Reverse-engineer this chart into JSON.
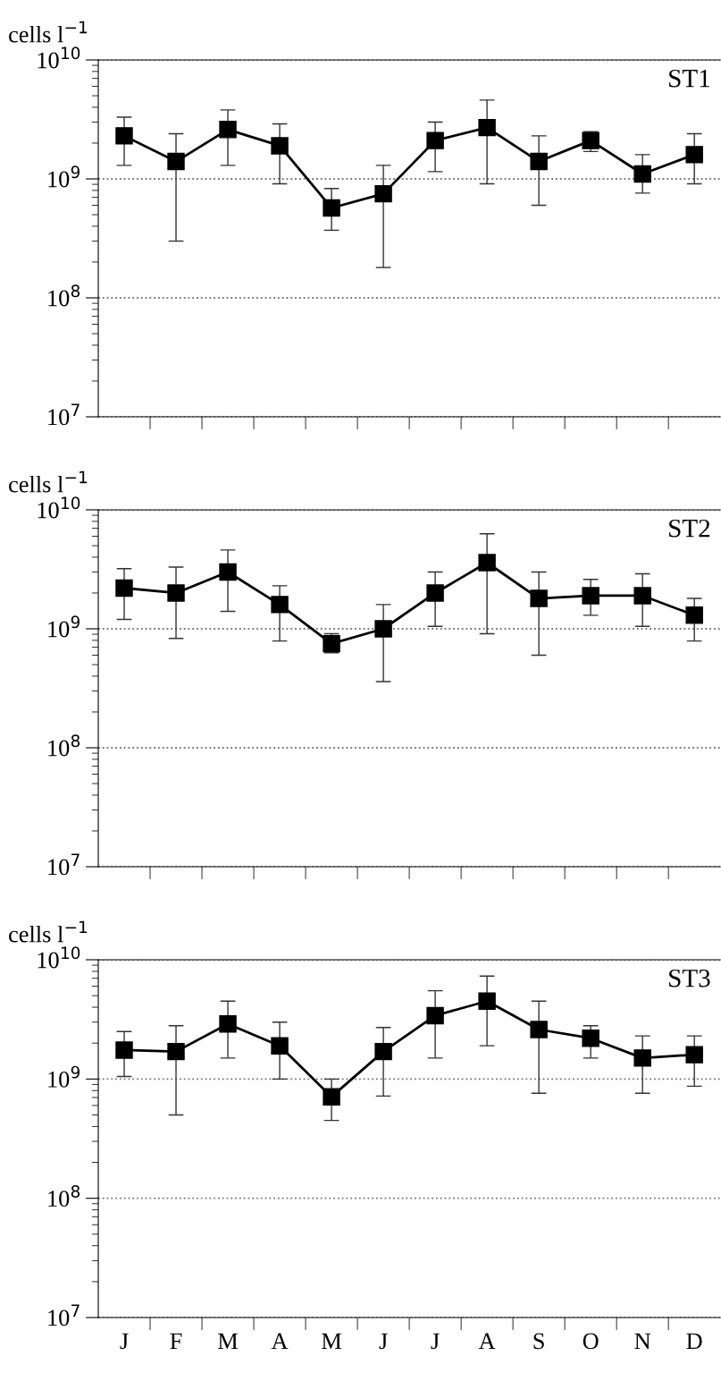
{
  "chart_data": [
    {
      "type": "line",
      "ylabel": "cells l$^{−1}$",
      "annotations": [
        "ST1"
      ],
      "categories": [
        null,
        null,
        null,
        null,
        null,
        null,
        null,
        null,
        null,
        null,
        null,
        null
      ],
      "log": "y",
      "grid": "y",
      "marker": "square",
      "line_style": "solid",
      "ylim": [
        10000000.0,
        10000000000.0
      ],
      "yticks": [
        {
          "value": 10000000.0,
          "label": "10$^{7}$"
        },
        {
          "value": 100000000.0,
          "label": "10$^{8}$"
        },
        {
          "value": 1000000000.0,
          "label": "10$^{9}$"
        },
        {
          "value": 10000000000.0,
          "label": "10$^{10}$"
        }
      ],
      "series": [
        {
          "color": "#000000",
          "values": [
            2300000000.0,
            1400000000.0,
            2600000000.0,
            1900000000.0,
            570000000.0,
            750000000.0,
            2100000000.0,
            2700000000.0,
            1400000000.0,
            2100000000.0,
            1100000000.0,
            1600000000.0
          ],
          "errors": [
            [
              1300000000.0,
              3300000000.0
            ],
            [
              300000000.0,
              2400000000.0
            ],
            [
              1300000000.0,
              3800000000.0
            ],
            [
              910000000.0,
              2900000000.0
            ],
            [
              370000000.0,
              830000000.0
            ],
            [
              180000000.0,
              1300000000.0
            ],
            [
              1150000000.0,
              3000000000.0
            ],
            [
              910000000.0,
              4600000000.0
            ],
            [
              600000000.0,
              2300000000.0
            ],
            [
              1700000000.0,
              2500000000.0
            ],
            [
              760000000.0,
              1600000000.0
            ],
            [
              910000000.0,
              2400000000.0
            ]
          ]
        }
      ]
    },
    {
      "type": "line",
      "ylabel": "cells l$^{−1}$",
      "annotations": [
        "ST2"
      ],
      "categories": [
        null,
        null,
        null,
        null,
        null,
        null,
        null,
        null,
        null,
        null,
        null,
        null
      ],
      "log": "y",
      "grid": "y",
      "marker": "square",
      "line_style": "solid",
      "ylim": [
        10000000.0,
        10000000000.0
      ],
      "yticks": [
        {
          "value": 10000000.0,
          "label": "10$^{7}$"
        },
        {
          "value": 100000000.0,
          "label": "10$^{8}$"
        },
        {
          "value": 1000000000.0,
          "label": "10$^{9}$"
        },
        {
          "value": 10000000000.0,
          "label": "10$^{10}$"
        }
      ],
      "series": [
        {
          "color": "#000000",
          "values": [
            2200000000.0,
            2000000000.0,
            3000000000.0,
            1600000000.0,
            750000000.0,
            1000000000.0,
            2000000000.0,
            3600000000.0,
            1800000000.0,
            1900000000.0,
            1900000000.0,
            1300000000.0
          ],
          "errors": [
            [
              1200000000.0,
              3200000000.0
            ],
            [
              830000000.0,
              3300000000.0
            ],
            [
              1400000000.0,
              4600000000.0
            ],
            [
              790000000.0,
              2300000000.0
            ],
            [
              630000000.0,
              910000000.0
            ],
            [
              360000000.0,
              1600000000.0
            ],
            [
              1050000000.0,
              3000000000.0
            ],
            [
              910000000.0,
              6300000000.0
            ],
            [
              600000000.0,
              3000000000.0
            ],
            [
              1300000000.0,
              2600000000.0
            ],
            [
              1050000000.0,
              2900000000.0
            ],
            [
              790000000.0,
              1800000000.0
            ]
          ]
        }
      ]
    },
    {
      "type": "line",
      "ylabel": "cells l$^{−1}$",
      "annotations": [
        "ST3"
      ],
      "categories": [
        "J",
        "F",
        "M",
        "A",
        "M",
        "J",
        "J",
        "A",
        "S",
        "O",
        "N",
        "D"
      ],
      "log": "y",
      "grid": "y",
      "marker": "square",
      "line_style": "solid",
      "ylim": [
        10000000.0,
        10000000000.0
      ],
      "yticks": [
        {
          "value": 10000000.0,
          "label": "10$^{7}$"
        },
        {
          "value": 100000000.0,
          "label": "10$^{8}$"
        },
        {
          "value": 1000000000.0,
          "label": "10$^{9}$"
        },
        {
          "value": 10000000000.0,
          "label": "10$^{10}$"
        }
      ],
      "series": [
        {
          "color": "#000000",
          "values": [
            1750000000.0,
            1700000000.0,
            2900000000.0,
            1900000000.0,
            710000000.0,
            1700000000.0,
            3400000000.0,
            4500000000.0,
            2600000000.0,
            2200000000.0,
            1500000000.0,
            1600000000.0
          ],
          "errors": [
            [
              1050000000.0,
              2500000000.0
            ],
            [
              500000000.0,
              2800000000.0
            ],
            [
              1500000000.0,
              4500000000.0
            ],
            [
              1000000000.0,
              3000000000.0
            ],
            [
              450000000.0,
              1000000000.0
            ],
            [
              720000000.0,
              2700000000.0
            ],
            [
              1500000000.0,
              5500000000.0
            ],
            [
              1900000000.0,
              7300000000.0
            ],
            [
              760000000.0,
              4500000000.0
            ],
            [
              1500000000.0,
              2800000000.0
            ],
            [
              760000000.0,
              2300000000.0
            ],
            [
              870000000.0,
              2300000000.0
            ]
          ]
        }
      ]
    }
  ]
}
